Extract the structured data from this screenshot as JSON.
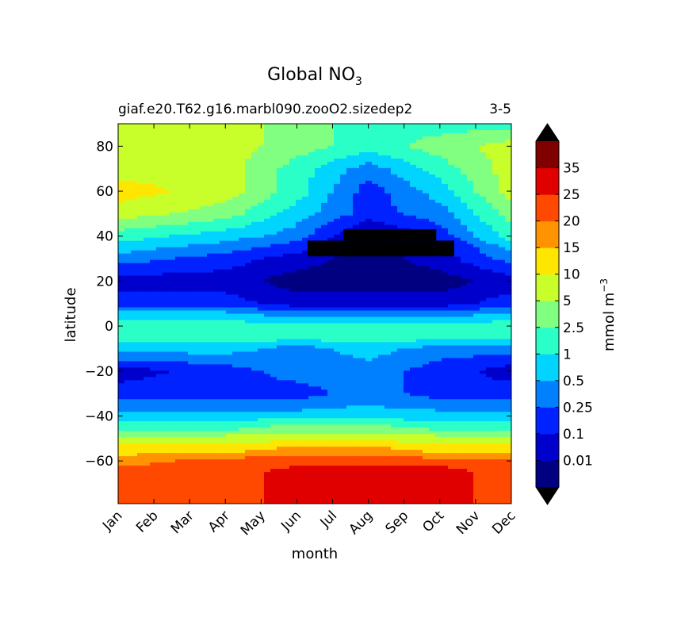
{
  "chart_data": {
    "type": "heatmap",
    "title_main": "Global NO",
    "title_sub": "3",
    "subtitle_left": "giaf.e20.T62.g16.marbl090.zooO2.sizedep2",
    "subtitle_right": "3-5",
    "xlabel": "month",
    "ylabel": "latitude",
    "x_categories": [
      "Jan",
      "Feb",
      "Mar",
      "Apr",
      "May",
      "Jun",
      "Jul",
      "Aug",
      "Sep",
      "Oct",
      "Nov",
      "Dec"
    ],
    "y_ticks": [
      80,
      60,
      40,
      20,
      0,
      -20,
      -40,
      -60
    ],
    "y_tick_labels": [
      "80",
      "60",
      "40",
      "20",
      "0",
      "−20",
      "−40",
      "−60"
    ],
    "ylim": [
      -79,
      90
    ],
    "colorbar": {
      "label_base": "mmol m",
      "label_exp": "−3",
      "levels": [
        "0.01",
        "0.1",
        "0.25",
        "0.5",
        "1",
        "2.5",
        "5",
        "10",
        "15",
        "20",
        "25",
        "35"
      ],
      "colors": [
        "#000080",
        "#0000cd",
        "#0022ff",
        "#0080ff",
        "#00d4ff",
        "#2bffc8",
        "#80ff80",
        "#c8ff2b",
        "#ffe600",
        "#ff9400",
        "#ff4800",
        "#e00000",
        "#800000"
      ],
      "under_color": "#000000",
      "over_color": "#000000"
    },
    "latitude_profile": {
      "latitudes": [
        90,
        80,
        70,
        60,
        50,
        40,
        35,
        30,
        20,
        10,
        5,
        0,
        -5,
        -10,
        -20,
        -30,
        -40,
        -45,
        -50,
        -55,
        -60,
        -65,
        -70,
        -79
      ],
      "months": [
        "Jan",
        "Apr",
        "Jun",
        "Aug",
        "Oct",
        "Dec"
      ],
      "level_index": [
        [
          7,
          7,
          6,
          5,
          5,
          5
        ],
        [
          7,
          7,
          6,
          5,
          6,
          7
        ],
        [
          7,
          7,
          5,
          3,
          5,
          7
        ],
        [
          8,
          7,
          5,
          2,
          4,
          7
        ],
        [
          7,
          6,
          4,
          2,
          3,
          6
        ],
        [
          5,
          4,
          3,
          0,
          2,
          5
        ],
        [
          4,
          3,
          2,
          0,
          1,
          4
        ],
        [
          3,
          2,
          1,
          0,
          1,
          3
        ],
        [
          1,
          1,
          0,
          0,
          0,
          1
        ],
        [
          2,
          2,
          1,
          1,
          1,
          2
        ],
        [
          4,
          4,
          3,
          3,
          3,
          4
        ],
        [
          5,
          5,
          5,
          5,
          5,
          5
        ],
        [
          5,
          5,
          5,
          5,
          5,
          5
        ],
        [
          4,
          4,
          3,
          4,
          3,
          3
        ],
        [
          1,
          2,
          3,
          3,
          2,
          1
        ],
        [
          2,
          2,
          2,
          3,
          2,
          2
        ],
        [
          4,
          4,
          4,
          4,
          4,
          4
        ],
        [
          5,
          5,
          6,
          6,
          5,
          5
        ],
        [
          7,
          7,
          7,
          7,
          7,
          7
        ],
        [
          8,
          8,
          9,
          9,
          8,
          8
        ],
        [
          9,
          10,
          10,
          10,
          10,
          10
        ],
        [
          10,
          10,
          11,
          11,
          11,
          10
        ],
        [
          10,
          10,
          11,
          11,
          11,
          10
        ],
        [
          10,
          10,
          11,
          11,
          11,
          10
        ]
      ]
    }
  }
}
